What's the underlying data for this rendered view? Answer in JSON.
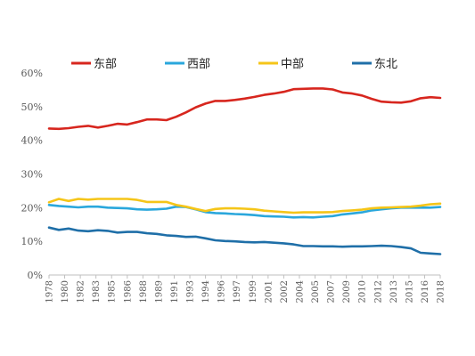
{
  "chart_data": {
    "type": "line",
    "xlabel": "",
    "ylabel": "",
    "ylim": [
      0,
      60
    ],
    "y_ticks": [
      "0%",
      "10%",
      "20%",
      "30%",
      "40%",
      "50%",
      "60%"
    ],
    "y_tick_values": [
      0,
      10,
      20,
      30,
      40,
      50,
      60
    ],
    "x": [
      1978,
      1979,
      1980,
      1981,
      1982,
      1983,
      1984,
      1985,
      1986,
      1987,
      1988,
      1989,
      1990,
      1991,
      1992,
      1993,
      1994,
      1995,
      1996,
      1997,
      1998,
      1999,
      2000,
      2001,
      2002,
      2003,
      2004,
      2005,
      2006,
      2007,
      2008,
      2009,
      2010,
      2011,
      2012,
      2013,
      2014,
      2015,
      2016,
      2017,
      2018
    ],
    "x_tick_labels": [
      "1978",
      "1980",
      "1982",
      "1983",
      "1985",
      "1986",
      "1988",
      "1989",
      "1991",
      "1993",
      "1994",
      "1996",
      "1997",
      "1999",
      "2001",
      "2002",
      "2004",
      "2005",
      "2007",
      "2009",
      "2010",
      "2012",
      "2013",
      "2015",
      "2016",
      "2018"
    ],
    "grid": false,
    "legend_position": "top",
    "series": [
      {
        "name": "东部",
        "color": "#d7261e",
        "values": [
          43.5,
          43.4,
          43.6,
          44.0,
          44.3,
          43.8,
          44.3,
          44.9,
          44.7,
          45.4,
          46.2,
          46.2,
          46.0,
          47.0,
          48.3,
          49.8,
          50.9,
          51.7,
          51.7,
          52.0,
          52.4,
          52.9,
          53.5,
          53.9,
          54.4,
          55.2,
          55.3,
          55.4,
          55.4,
          55.1,
          54.2,
          53.9,
          53.3,
          52.3,
          51.5,
          51.3,
          51.2,
          51.6,
          52.5,
          52.8,
          52.6
        ]
      },
      {
        "name": "西部",
        "color": "#2aa7dc",
        "values": [
          20.8,
          20.5,
          20.3,
          20.1,
          20.3,
          20.3,
          20.0,
          19.9,
          19.8,
          19.5,
          19.4,
          19.5,
          19.7,
          20.3,
          20.2,
          19.5,
          18.7,
          18.4,
          18.3,
          18.1,
          18.0,
          17.8,
          17.5,
          17.4,
          17.3,
          17.1,
          17.2,
          17.1,
          17.3,
          17.5,
          18.0,
          18.3,
          18.6,
          19.2,
          19.5,
          19.8,
          20.0,
          20.0,
          20.0,
          20.0,
          20.2
        ]
      },
      {
        "name": "中部",
        "color": "#f5c518",
        "values": [
          21.6,
          22.6,
          22.0,
          22.6,
          22.4,
          22.6,
          22.6,
          22.6,
          22.6,
          22.3,
          21.7,
          21.7,
          21.7,
          20.8,
          20.3,
          19.6,
          19.0,
          19.6,
          19.8,
          19.8,
          19.7,
          19.5,
          19.1,
          18.9,
          18.7,
          18.5,
          18.6,
          18.6,
          18.6,
          18.7,
          19.0,
          19.2,
          19.4,
          19.8,
          20.0,
          20.1,
          20.2,
          20.3,
          20.6,
          21.0,
          21.2
        ]
      },
      {
        "name": "东北",
        "color": "#1f6fa8",
        "values": [
          14.1,
          13.4,
          13.8,
          13.2,
          13.0,
          13.3,
          13.1,
          12.6,
          12.8,
          12.8,
          12.4,
          12.2,
          11.8,
          11.6,
          11.3,
          11.4,
          10.9,
          10.3,
          10.1,
          10.0,
          9.8,
          9.7,
          9.8,
          9.6,
          9.4,
          9.1,
          8.6,
          8.6,
          8.5,
          8.5,
          8.4,
          8.5,
          8.5,
          8.6,
          8.7,
          8.6,
          8.3,
          7.9,
          6.6,
          6.4,
          6.2
        ]
      }
    ]
  }
}
